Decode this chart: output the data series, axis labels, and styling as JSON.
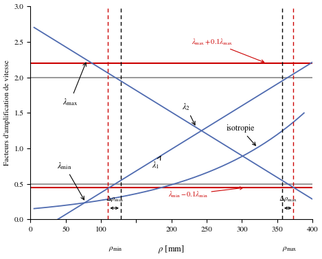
{
  "xlim": [
    0,
    400
  ],
  "ylim": [
    0,
    3
  ],
  "lambda_max": 2.0,
  "lambda_min": 0.5,
  "lam_upper": 2.2,
  "lam_lower": 0.45,
  "rho_min": 120,
  "rho_max": 365,
  "drl": 110,
  "drr": 128,
  "drml": 357,
  "drmr": 373,
  "blue": "#4F6BB0",
  "red": "#CC0000",
  "gray": "#888888",
  "bg": "#FFFFFF",
  "lw_curve": 1.3,
  "lw_hline": 1.2,
  "lw_vline": 1.0
}
